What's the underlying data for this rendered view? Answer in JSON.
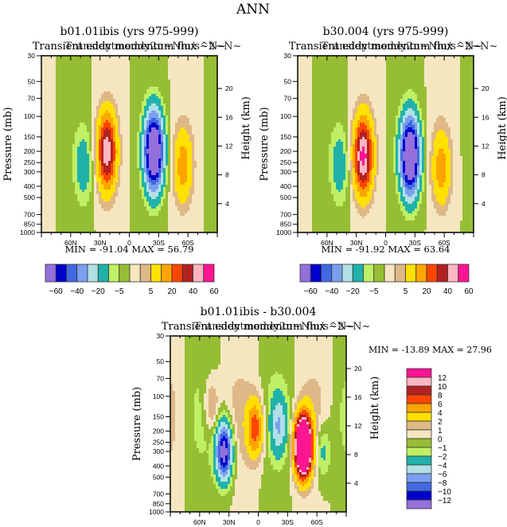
{
  "chart_data": {
    "type": "heatmap",
    "suptitle": "ANN",
    "panels": [
      {
        "id": "case1",
        "title": "b01.01ibis (yrs 975-999)",
        "subtitle": "Transient eddy momentum flux ~N~",
        "overlay_text": "Transientmeddy2n~Nm/s^2~N~",
        "ylabel_left": "Pressure (mb)",
        "ylabel_right": "Height (km)",
        "x_ticks": [
          "60N",
          "30N",
          "0",
          "30S",
          "60S"
        ],
        "x_tick_values": [
          60,
          30,
          0,
          -30,
          -60
        ],
        "y_ticks_pressure": [
          30,
          50,
          70,
          100,
          150,
          200,
          250,
          300,
          400,
          500,
          700,
          850,
          1000
        ],
        "y_ticks_height": [
          4,
          8,
          12,
          16,
          20
        ],
        "stats": {
          "min_label": "MIN =",
          "min": "-91.04",
          "max_label": "MAX =",
          "max": "56.79"
        },
        "features": [
          {
            "lat": 47,
            "p": 270,
            "value": -15,
            "desc": "weak negative cell"
          },
          {
            "lat": 23,
            "p": 200,
            "value": 56.79,
            "desc": "positive maximum"
          },
          {
            "lat": -25,
            "p": 200,
            "value": -91.04,
            "desc": "negative minimum"
          },
          {
            "lat": -55,
            "p": 270,
            "value": 25,
            "desc": "positive cell"
          }
        ]
      },
      {
        "id": "case2",
        "title": "b30.004 (yrs 975-999)",
        "subtitle": "Transient eddy momentum flux ~N~",
        "overlay_text": "Transientmeddy2n~Nm/s^2~N~",
        "ylabel_left": "Pressure (mb)",
        "ylabel_right": "Height (km)",
        "x_ticks": [
          "60N",
          "30N",
          "0",
          "30S",
          "60S"
        ],
        "x_tick_values": [
          60,
          30,
          0,
          -30,
          -60
        ],
        "y_ticks_pressure": [
          30,
          50,
          70,
          100,
          150,
          200,
          250,
          300,
          400,
          500,
          700,
          850,
          1000
        ],
        "y_ticks_height": [
          4,
          8,
          12,
          16,
          20
        ],
        "stats": {
          "min_label": "MIN =",
          "min": "-91.92",
          "max_label": "MAX =",
          "max": "63.64"
        },
        "features": [
          {
            "lat": 47,
            "p": 270,
            "value": -15,
            "desc": "weak negative cell"
          },
          {
            "lat": 23,
            "p": 220,
            "value": 63.64,
            "desc": "positive maximum"
          },
          {
            "lat": -25,
            "p": 220,
            "value": -91.92,
            "desc": "negative minimum"
          },
          {
            "lat": -57,
            "p": 280,
            "value": 25,
            "desc": "positive cell"
          }
        ]
      },
      {
        "id": "diff",
        "title": "b01.01ibis - b30.004",
        "subtitle": "Transient eddy momentum flux ~N~",
        "overlay_text": "Transientmeddy2n~Nm/s^2~N~",
        "ylabel_left": "Pressure (mb)",
        "ylabel_right": "Height (km)",
        "x_ticks": [
          "60N",
          "30N",
          "0",
          "30S",
          "60S"
        ],
        "x_tick_values": [
          60,
          30,
          0,
          -30,
          -60
        ],
        "y_ticks_pressure": [
          30,
          50,
          70,
          100,
          150,
          200,
          250,
          300,
          400,
          500,
          700,
          850,
          1000
        ],
        "y_ticks_height": [
          4,
          8,
          12,
          16,
          20
        ],
        "stats": {
          "min_label": "MIN =",
          "min": "-13.89",
          "max_label": "MAX =",
          "max": "27.96"
        },
        "features": [
          {
            "lat": 35,
            "p": 300,
            "value": -13.89,
            "desc": "negative minimum"
          },
          {
            "lat": 3,
            "p": 190,
            "value": 7,
            "desc": "positive cell"
          },
          {
            "lat": -21,
            "p": 180,
            "value": -5,
            "desc": "weak negative cell"
          },
          {
            "lat": -46,
            "p": 270,
            "value": 27.96,
            "desc": "positive maximum"
          },
          {
            "lat": -66,
            "p": 300,
            "value": -3,
            "desc": "weak negative band"
          },
          {
            "lat": 48,
            "p": 120,
            "value": 3,
            "desc": "weak positive cell"
          }
        ]
      }
    ],
    "colorbars": [
      {
        "panel": "case1",
        "orientation": "horizontal",
        "levels": [
          -60,
          -50,
          -40,
          -30,
          -20,
          -10,
          -5,
          0,
          5,
          10,
          20,
          30,
          40,
          50,
          60
        ],
        "labels": [
          "-60",
          "-40",
          "-20",
          "-5",
          "5",
          "20",
          "40",
          "60"
        ]
      },
      {
        "panel": "case2",
        "orientation": "horizontal",
        "levels": [
          -60,
          -50,
          -40,
          -30,
          -20,
          -10,
          -5,
          0,
          5,
          10,
          20,
          30,
          40,
          50,
          60
        ],
        "labels": [
          "-60",
          "-40",
          "-20",
          "-5",
          "5",
          "20",
          "40",
          "60"
        ]
      },
      {
        "panel": "diff",
        "orientation": "vertical",
        "levels": [
          -12,
          -10,
          -8,
          -6,
          -4,
          -2,
          -1,
          0,
          1,
          2,
          4,
          6,
          8,
          10,
          12
        ],
        "labels": [
          "12",
          "10",
          "8",
          "6",
          "4",
          "2",
          "1",
          "0",
          "-1",
          "-2",
          "-4",
          "-6",
          "-8",
          "-10",
          "-12"
        ]
      }
    ],
    "palette": [
      "#9370DB",
      "#0000CD",
      "#4169E1",
      "#7B9FF0",
      "#B0E0E6",
      "#20B2AA",
      "#BFEF64",
      "#96BE34",
      "#F5E6C0",
      "#DEB887",
      "#FFE000",
      "#FFA500",
      "#FF4500",
      "#B22222",
      "#FFB6C1",
      "#FF1493"
    ]
  }
}
